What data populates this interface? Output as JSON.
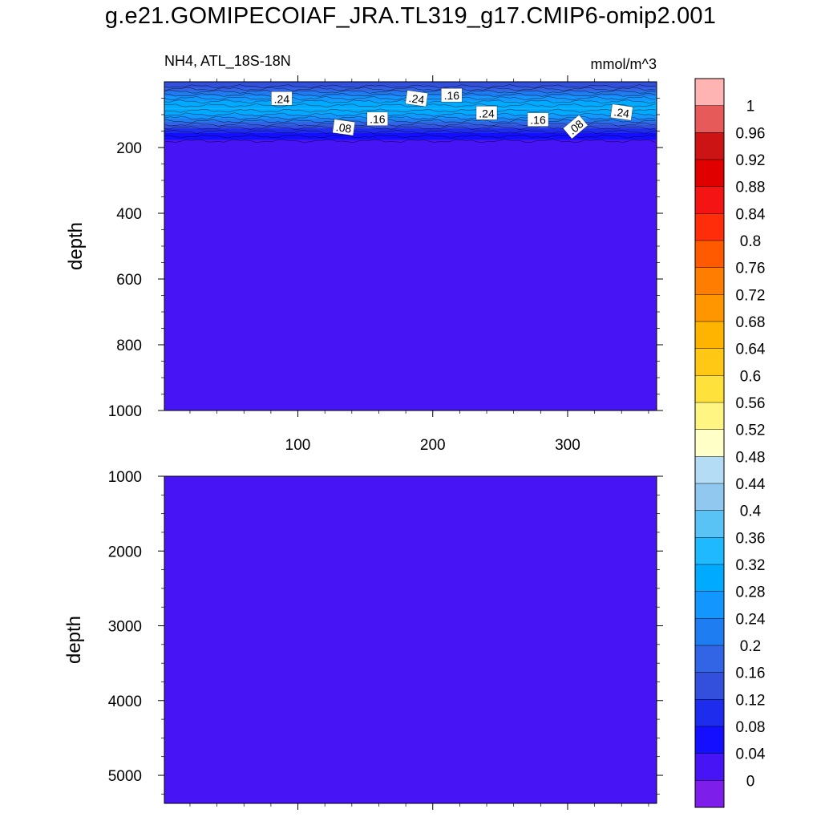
{
  "title": "g.e21.GOMIPECOIAF_JRA.TL319_g17.CMIP6-omip2.001",
  "colors": {
    "background": "#ffffff",
    "plot_fill": "#4614f5",
    "frame": "#000000"
  },
  "colorbar": {
    "labels": [
      "1",
      "0.96",
      "0.92",
      "0.88",
      "0.84",
      "0.8",
      "0.76",
      "0.72",
      "0.68",
      "0.64",
      "0.6",
      "0.56",
      "0.52",
      "0.48",
      "0.44",
      "0.4",
      "0.36",
      "0.32",
      "0.28",
      "0.24",
      "0.2",
      "0.16",
      "0.12",
      "0.08",
      "0.04",
      "0"
    ],
    "levels": [
      0,
      0.04,
      0.08,
      0.12,
      0.16,
      0.2,
      0.24,
      0.28,
      0.32,
      0.36,
      0.4,
      0.44,
      0.48,
      0.52,
      0.56,
      0.6,
      0.64,
      0.68,
      0.72,
      0.76,
      0.8,
      0.84,
      0.88,
      0.92,
      0.96,
      1
    ],
    "colors_top_to_bottom": [
      "#ffb4b4",
      "#e65a5a",
      "#cd1414",
      "#e10000",
      "#f51414",
      "#ff2d0a",
      "#ff5a00",
      "#ff7d00",
      "#ff9600",
      "#ffb400",
      "#ffc814",
      "#ffe13c",
      "#fff582",
      "#ffffc8",
      "#b4dcf5",
      "#91c8f0",
      "#5ac3f5",
      "#1eb9ff",
      "#00aaff",
      "#1496ff",
      "#1e7df0",
      "#3264e6",
      "#3250dc",
      "#1e2ded",
      "#140fff",
      "#4614f5",
      "#7d1eeb"
    ]
  },
  "chart_data": [
    {
      "type": "heatmap",
      "subtitle_left": "NH4, ATL_18S-18N",
      "subtitle_right": "mmol/m^3",
      "ylabel": "depth",
      "xlim": [
        1,
        366
      ],
      "ylim": [
        0,
        1000
      ],
      "y_inverted": true,
      "x_ticks": [
        100,
        200,
        300
      ],
      "x_tick_labels": [
        "100",
        "200",
        "300"
      ],
      "y_ticks": [
        200,
        400,
        600,
        800,
        1000
      ],
      "y_tick_labels": [
        "200",
        "400",
        "600",
        "800",
        "1000"
      ],
      "depth_profile": [
        {
          "depth": 0,
          "value": 0.12
        },
        {
          "depth": 10,
          "value": 0.14
        },
        {
          "depth": 20,
          "value": 0.17
        },
        {
          "depth": 35,
          "value": 0.22
        },
        {
          "depth": 50,
          "value": 0.26
        },
        {
          "depth": 65,
          "value": 0.3
        },
        {
          "depth": 80,
          "value": 0.32
        },
        {
          "depth": 95,
          "value": 0.29
        },
        {
          "depth": 110,
          "value": 0.24
        },
        {
          "depth": 125,
          "value": 0.18
        },
        {
          "depth": 140,
          "value": 0.12
        },
        {
          "depth": 155,
          "value": 0.08
        },
        {
          "depth": 170,
          "value": 0.05
        },
        {
          "depth": 185,
          "value": 0.02
        },
        {
          "depth": 200,
          "value": 0.0
        },
        {
          "depth": 1000,
          "value": 0.0
        }
      ],
      "contour_labels": [
        {
          "text": ".24",
          "x": 88,
          "depth": 52
        },
        {
          "text": ".24",
          "x": 188,
          "depth": 52
        },
        {
          "text": ".16",
          "x": 214,
          "depth": 42
        },
        {
          "text": ".24",
          "x": 240,
          "depth": 96
        },
        {
          "text": ".24",
          "x": 340,
          "depth": 94
        },
        {
          "text": ".16",
          "x": 159,
          "depth": 114
        },
        {
          "text": ".16",
          "x": 278,
          "depth": 116
        },
        {
          "text": ".08",
          "x": 134,
          "depth": 140
        },
        {
          "text": ".08",
          "x": 306,
          "depth": 138
        }
      ]
    },
    {
      "type": "heatmap",
      "ylabel": "depth",
      "xlim": [
        1,
        366
      ],
      "ylim": [
        1000,
        5375
      ],
      "y_inverted": true,
      "y_ticks": [
        1000,
        2000,
        3000,
        4000,
        5000
      ],
      "y_tick_labels": [
        "1000",
        "2000",
        "3000",
        "4000",
        "5000"
      ],
      "uniform_value": 0.0
    }
  ]
}
